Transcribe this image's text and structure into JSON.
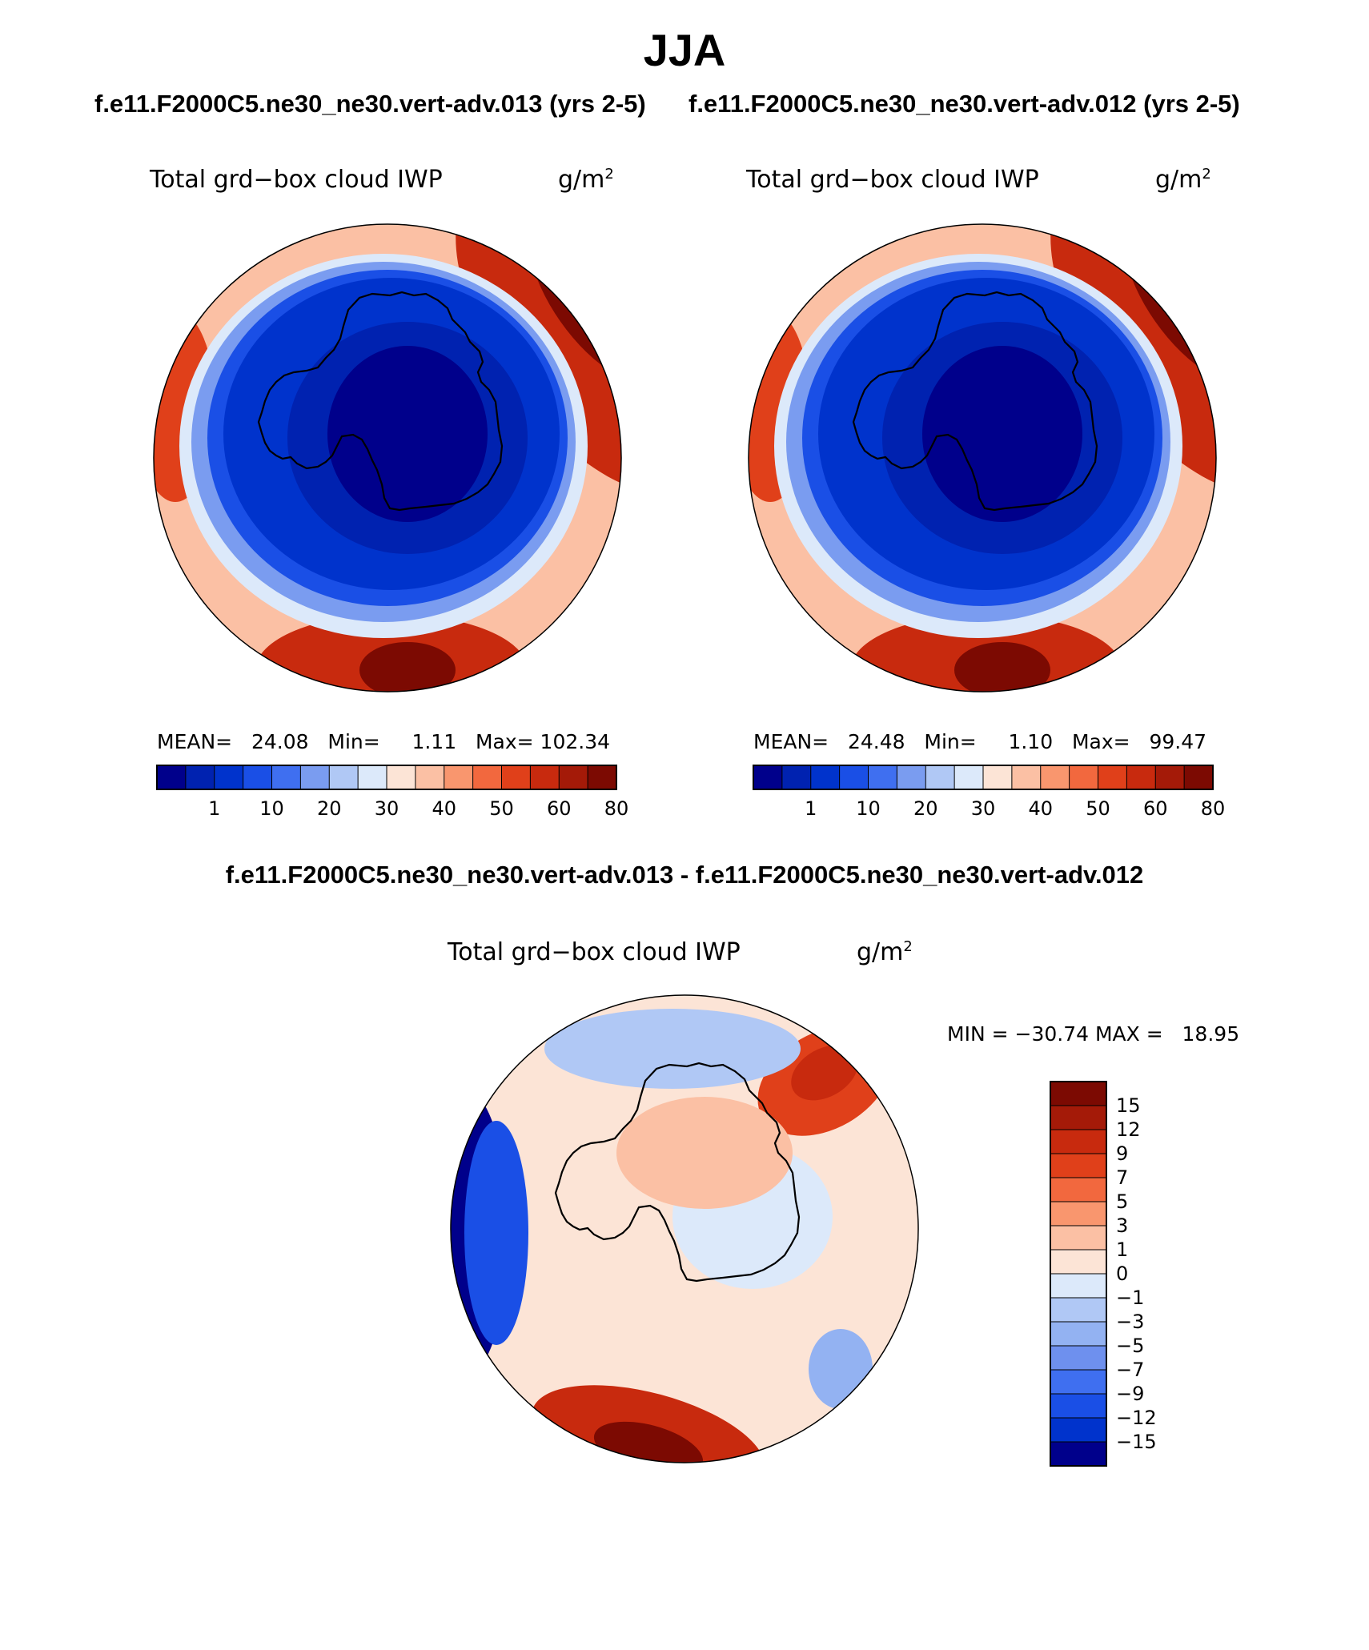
{
  "title": "JJA",
  "header": {
    "left_case": "f.e11.F2000C5.ne30_ne30.vert-adv.013 (yrs 2-5)",
    "right_case": "f.e11.F2000C5.ne30_ne30.vert-adv.012 (yrs 2-5)",
    "diff_case": "f.e11.F2000C5.ne30_ne30.vert-adv.013 - f.e11.F2000C5.ne30_ne30.vert-adv.012"
  },
  "chart_data": [
    {
      "type": "heatmap",
      "projection": "south-polar-stereographic",
      "variable": "Total grd−box cloud IWP",
      "units_base": "g/m",
      "units_exp": "2",
      "case": "f.e11.F2000C5.ne30_ne30.vert-adv.013 (yrs 2-5)",
      "stats": {
        "mean_label": "MEAN=",
        "mean": "24.08",
        "min_label": "Min=",
        "min": "1.11",
        "max_label": "Max=",
        "max": "102.34"
      },
      "levels": [
        "1",
        "10",
        "20",
        "30",
        "40",
        "50",
        "60",
        "80"
      ],
      "colors": [
        "#00008B",
        "#0022B0",
        "#0033CC",
        "#1A4FE6",
        "#3F6FF0",
        "#7A9CF0",
        "#B0C8F5",
        "#DCE9FA",
        "#FCE4D6",
        "#FBC0A4",
        "#F9966E",
        "#F2683E",
        "#E0401A",
        "#C82A0E",
        "#A41A08",
        "#7C0A02"
      ],
      "legend": "bottom"
    },
    {
      "type": "heatmap",
      "projection": "south-polar-stereographic",
      "variable": "Total grd−box cloud IWP",
      "units_base": "g/m",
      "units_exp": "2",
      "case": "f.e11.F2000C5.ne30_ne30.vert-adv.012 (yrs 2-5)",
      "stats": {
        "mean_label": "MEAN=",
        "mean": "24.48",
        "min_label": "Min=",
        "min": "1.10",
        "max_label": "Max=",
        "max": "99.47"
      },
      "levels": [
        "1",
        "10",
        "20",
        "30",
        "40",
        "50",
        "60",
        "80"
      ],
      "colors": [
        "#00008B",
        "#0022B0",
        "#0033CC",
        "#1A4FE6",
        "#3F6FF0",
        "#7A9CF0",
        "#B0C8F5",
        "#DCE9FA",
        "#FCE4D6",
        "#FBC0A4",
        "#F9966E",
        "#F2683E",
        "#E0401A",
        "#C82A0E",
        "#A41A08",
        "#7C0A02"
      ],
      "legend": "bottom"
    },
    {
      "type": "heatmap",
      "projection": "south-polar-stereographic",
      "variable": "Total grd−box cloud IWP",
      "units_base": "g/m",
      "units_exp": "2",
      "case": "f.e11.F2000C5.ne30_ne30.vert-adv.013 - f.e11.F2000C5.ne30_ne30.vert-adv.012",
      "stats": {
        "min_label": "MIN =",
        "min": "−30.74",
        "max_label": "MAX =",
        "max": "18.95"
      },
      "levels": [
        "15",
        "12",
        "9",
        "7",
        "5",
        "3",
        "1",
        "0",
        "−1",
        "−3",
        "−5",
        "−7",
        "−9",
        "−12",
        "−15"
      ],
      "colors_top_to_bottom": [
        "#7C0A02",
        "#A41A08",
        "#C82A0E",
        "#E0401A",
        "#F2683E",
        "#F9966E",
        "#FBC0A4",
        "#FCE4D6",
        "#DCE9FA",
        "#B0C8F5",
        "#93B2F2",
        "#6E90EE",
        "#3F6FF0",
        "#1A4FE6",
        "#0033CC",
        "#00008B"
      ],
      "legend": "right"
    }
  ]
}
